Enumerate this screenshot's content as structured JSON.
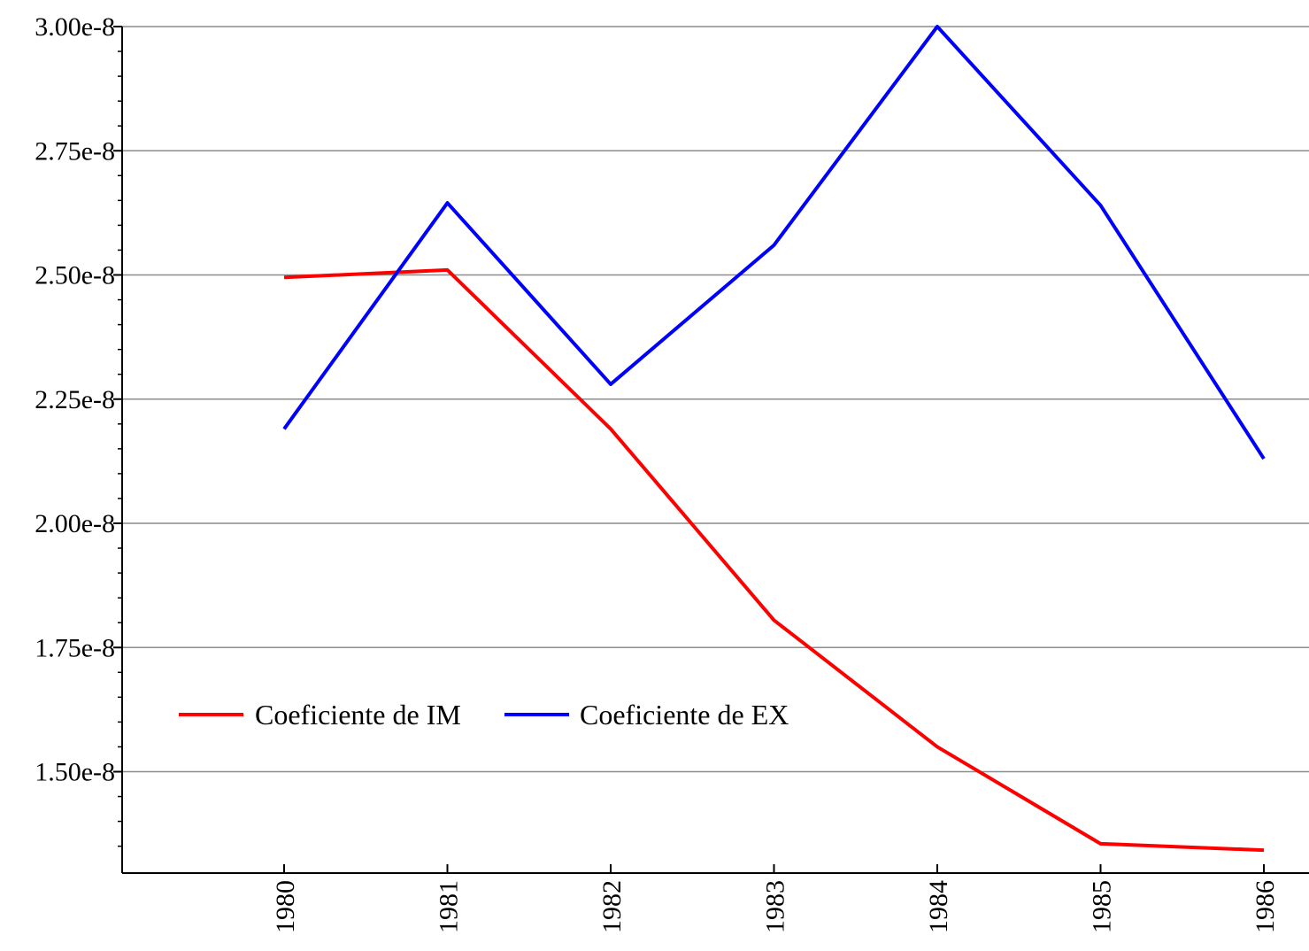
{
  "chart_data": {
    "type": "line",
    "title": "",
    "xlabel": "",
    "ylabel": "",
    "x": [
      "1980",
      "1981",
      "1982",
      "1983",
      "1984",
      "1985",
      "1986"
    ],
    "y_ticks": [
      "1.50e-8",
      "1.75e-8",
      "2.00e-8",
      "2.25e-8",
      "2.50e-8",
      "2.75e-8",
      "3.00e-8"
    ],
    "y_tick_values": [
      1.5e-08,
      1.75e-08,
      2e-08,
      2.25e-08,
      2.5e-08,
      2.75e-08,
      3e-08
    ],
    "ylim": [
      1.33e-08,
      3e-08
    ],
    "grid": true,
    "legend_position": "bottom-left",
    "series": [
      {
        "name": "Coeficiente de IM",
        "color": "#ff0000",
        "values": [
          2.495e-08,
          2.51e-08,
          2.19e-08,
          1.805e-08,
          1.55e-08,
          1.355e-08,
          1.342e-08
        ]
      },
      {
        "name": "Coeficiente de EX",
        "color": "#0000ff",
        "values": [
          2.19e-08,
          2.645e-08,
          2.28e-08,
          2.56e-08,
          3e-08,
          2.64e-08,
          2.13e-08
        ]
      }
    ]
  }
}
